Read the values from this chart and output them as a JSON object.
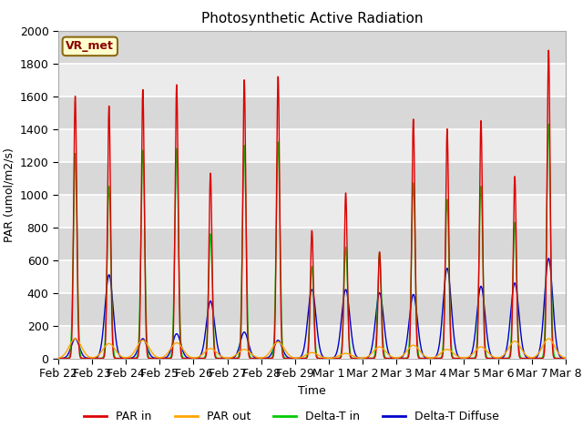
{
  "title": "Photosynthetic Active Radiation",
  "ylabel": "PAR (umol/m2/s)",
  "xlabel": "Time",
  "annotation": "VR_met",
  "ylim": [
    0,
    2000
  ],
  "background_color": "#e8e8e8",
  "band_color": "#d0d0d0",
  "grid_color": "white",
  "colors": {
    "par_in": "#dd0000",
    "par_out": "#ffa500",
    "delta_t_in": "#00cc00",
    "delta_t_diffuse": "#0000cc"
  },
  "legend_labels": [
    "PAR in",
    "PAR out",
    "Delta-T in",
    "Delta-T Diffuse"
  ],
  "day_peaks": {
    "par_in": [
      1600,
      1540,
      1640,
      1670,
      1130,
      1700,
      1720,
      780,
      1010,
      650,
      1460,
      1400,
      1450,
      1110,
      1880
    ],
    "par_out": [
      120,
      90,
      110,
      95,
      60,
      55,
      100,
      35,
      30,
      70,
      80,
      55,
      70,
      105,
      120
    ],
    "delta_t_in": [
      1250,
      1050,
      1270,
      1280,
      760,
      1300,
      1320,
      560,
      680,
      640,
      1070,
      970,
      1050,
      830,
      1430
    ],
    "delta_t_diff": [
      120,
      510,
      120,
      150,
      350,
      160,
      110,
      420,
      420,
      400,
      390,
      550,
      440,
      460,
      610
    ]
  },
  "tick_labels": [
    "Feb 22",
    "Feb 23",
    "Feb 24",
    "Feb 25",
    "Feb 26",
    "Feb 27",
    "Feb 28",
    "Feb 29",
    "Mar 1",
    "Mar 2",
    "Mar 3",
    "Mar 4",
    "Mar 5",
    "Mar 6",
    "Mar 7",
    "Mar 8"
  ],
  "yticks": [
    0,
    200,
    400,
    600,
    800,
    1000,
    1200,
    1400,
    1600,
    1800,
    2000
  ]
}
